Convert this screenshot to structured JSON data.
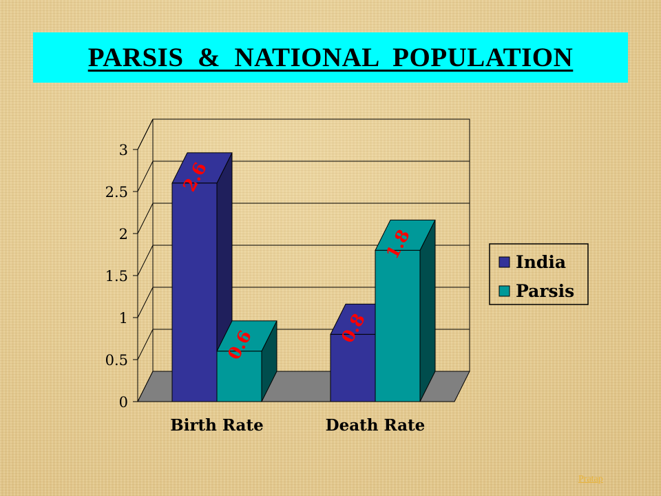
{
  "header": {
    "title": "PARSIS  &  NATIONAL  POPULATION"
  },
  "footer": {
    "credit": "Pratap"
  },
  "chart_data": {
    "type": "bar",
    "style": "3d-column",
    "categories": [
      "Birth Rate",
      "Death Rate"
    ],
    "series": [
      {
        "name": "India",
        "values": [
          2.6,
          0.8
        ],
        "color": "#333399"
      },
      {
        "name": "Parsis",
        "values": [
          0.6,
          1.8
        ],
        "color": "#009999"
      }
    ],
    "data_labels": [
      "2.6",
      "0.6",
      "0.8",
      "1.8"
    ],
    "data_label_color": "#ff0000",
    "ylim": [
      0,
      3
    ],
    "yticks": [
      "0",
      "0.5",
      "1",
      "1.5",
      "2",
      "2.5",
      "3"
    ],
    "grid": true,
    "legend": "right"
  }
}
